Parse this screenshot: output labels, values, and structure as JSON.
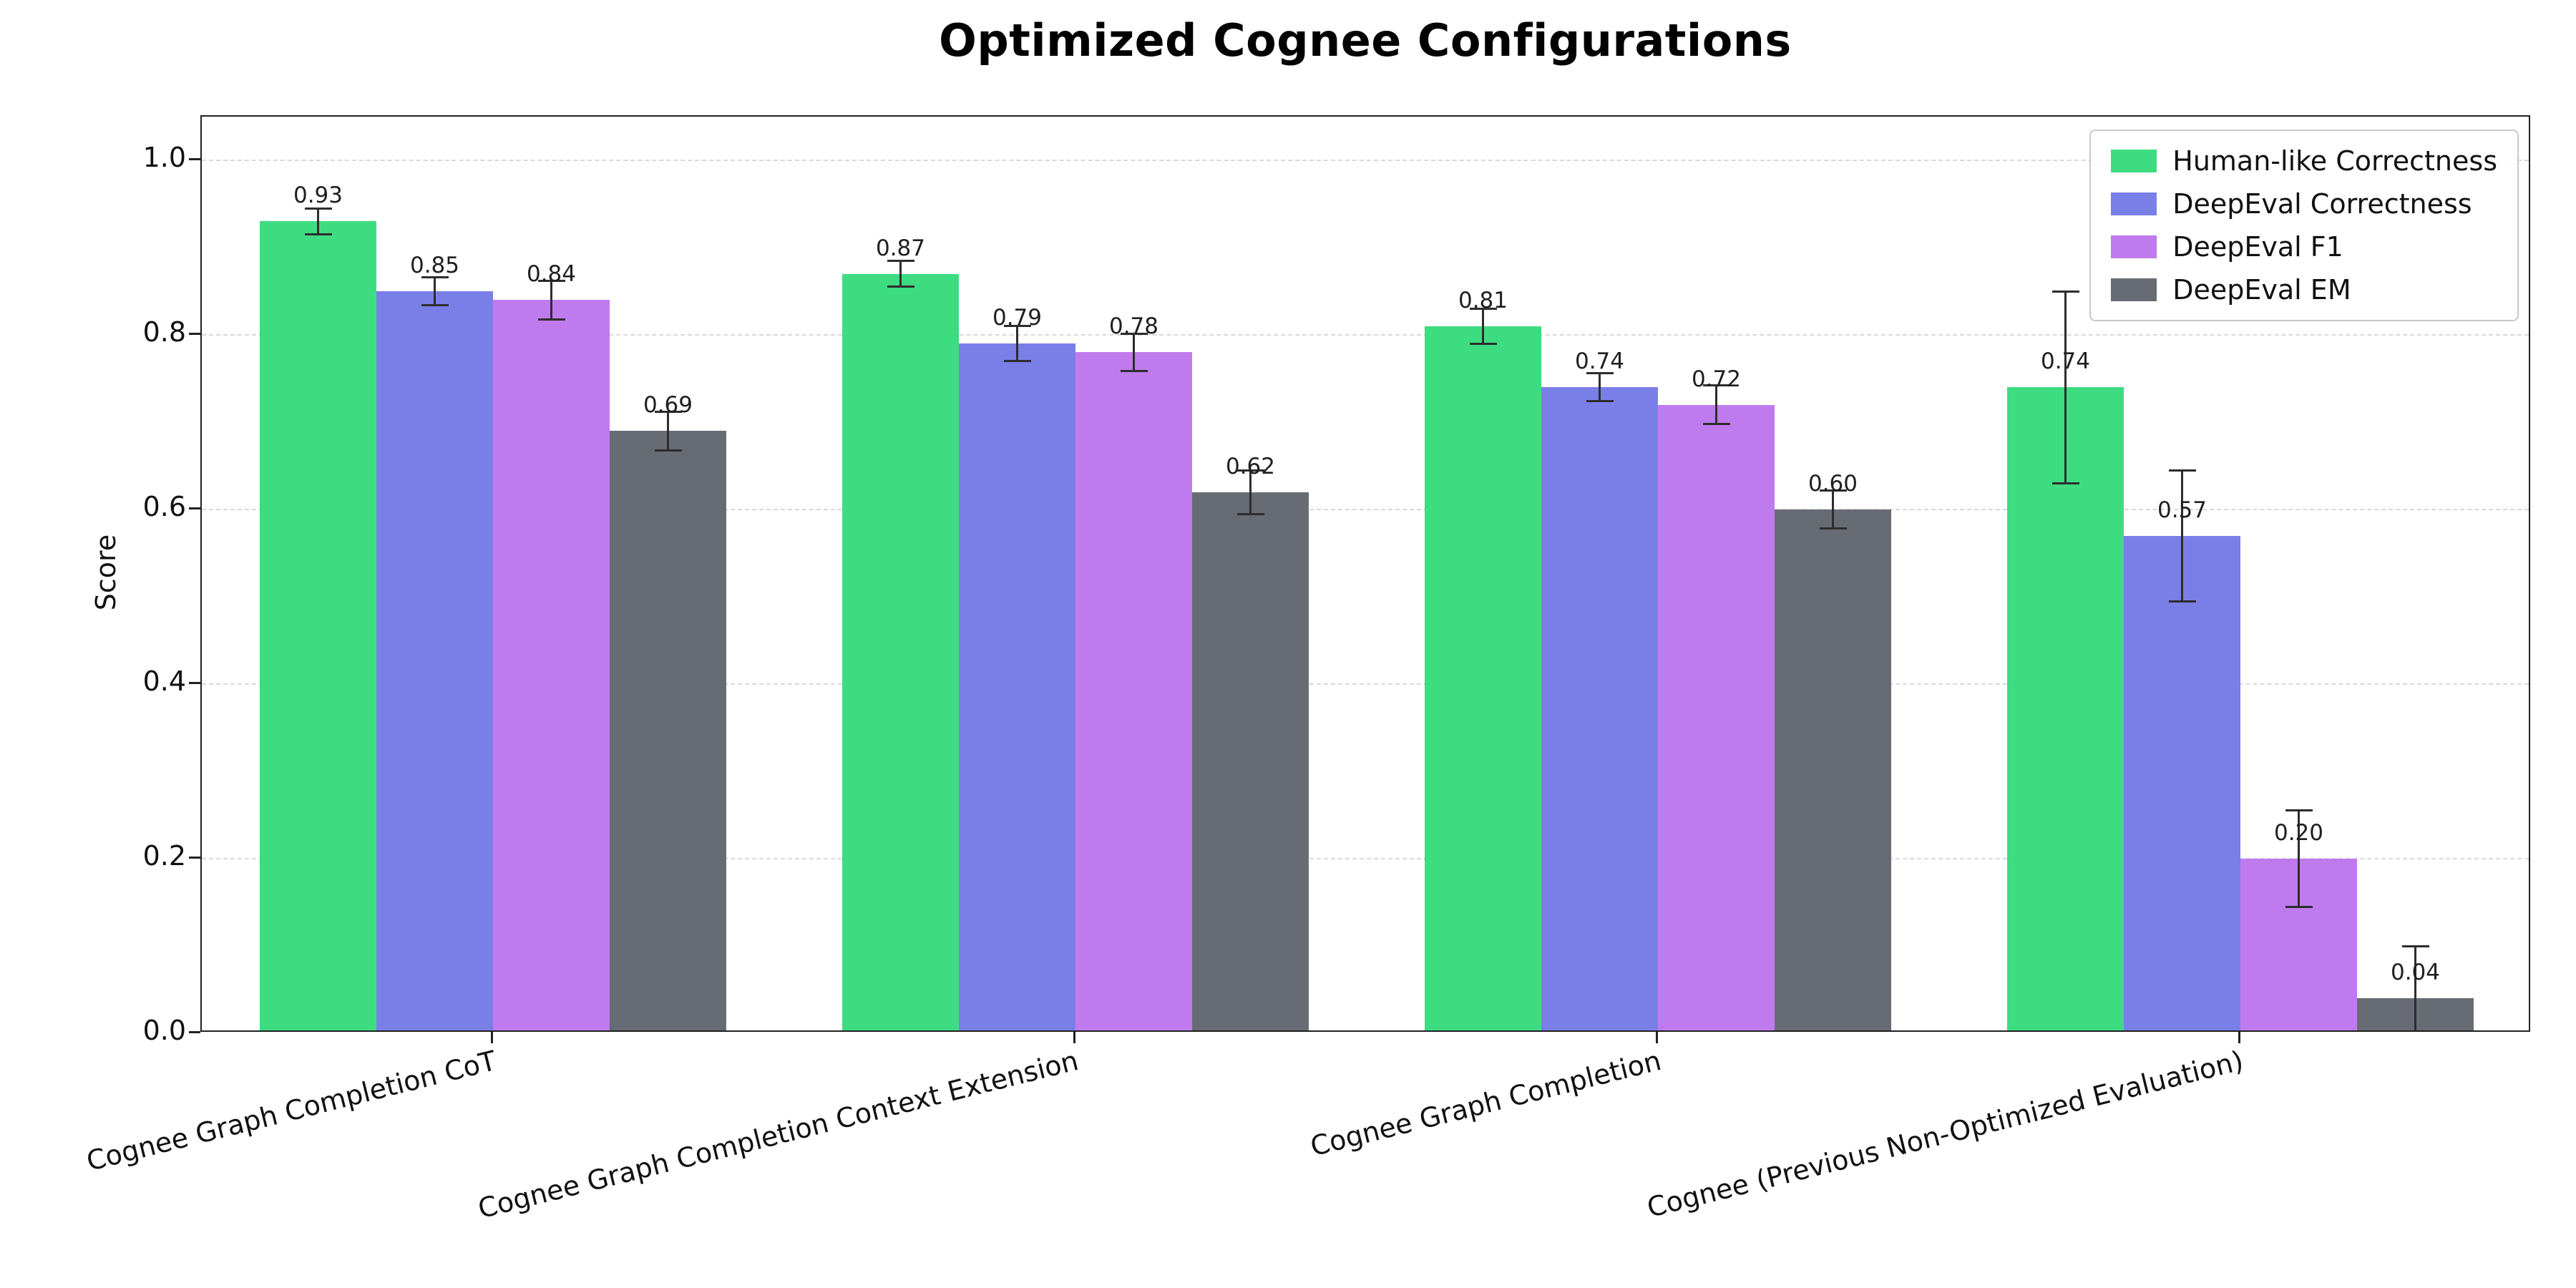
{
  "chart_data": {
    "type": "bar",
    "title": "Optimized Cognee Configurations",
    "ylabel": "Score",
    "xlabel": "",
    "ylim": [
      0,
      1.05
    ],
    "yticks": [
      0,
      0.2,
      0.4,
      0.6,
      0.8,
      1.0
    ],
    "grid": "horizontal-dashed",
    "legend_position": "upper right",
    "categories": [
      "Cognee Graph Completion CoT",
      "Cognee Graph Completion Context Extension",
      "Cognee Graph Completion",
      "Cognee (Previous Non-Optimized Evaluation)"
    ],
    "series": [
      {
        "name": "Human-like Correctness",
        "color": "#3edc81",
        "values": [
          0.93,
          0.87,
          0.81,
          0.74
        ],
        "errors": [
          0.015,
          0.015,
          0.02,
          0.11
        ]
      },
      {
        "name": "DeepEval Correctness",
        "color": "#7a7fe8",
        "values": [
          0.85,
          0.79,
          0.74,
          0.57
        ],
        "errors": [
          0.016,
          0.02,
          0.016,
          0.075
        ]
      },
      {
        "name": "DeepEval F1",
        "color": "#bf7bee",
        "values": [
          0.84,
          0.78,
          0.72,
          0.2
        ],
        "errors": [
          0.022,
          0.021,
          0.022,
          0.055
        ]
      },
      {
        "name": "DeepEval EM",
        "color": "#676c74",
        "values": [
          0.69,
          0.62,
          0.6,
          0.04
        ],
        "errors": [
          0.022,
          0.025,
          0.022,
          0.06
        ]
      }
    ]
  }
}
